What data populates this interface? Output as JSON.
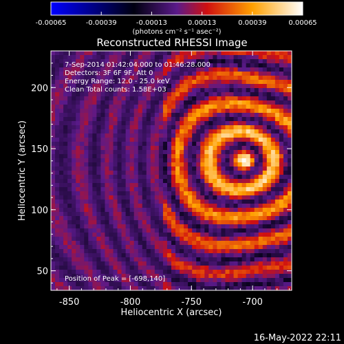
{
  "chart_data": {
    "type": "heatmap",
    "title": "Reconstructed RHESSI Image",
    "xlabel": "Heliocentric X (arcsec)",
    "ylabel": "Heliocentric Y (arcsec)",
    "xlim": [
      -865,
      -668
    ],
    "ylim": [
      34,
      230
    ],
    "x_ticks": [
      -850,
      -800,
      -750,
      -700
    ],
    "x_tick_labels": [
      "-850",
      "-800",
      "-750",
      "-700"
    ],
    "y_ticks": [
      50,
      100,
      150,
      200
    ],
    "y_tick_labels": [
      "50",
      "100",
      "150",
      "200"
    ],
    "colorbar": {
      "range": [
        -0.00065,
        0.00065
      ],
      "ticks": [
        -0.00065,
        -0.00039,
        -0.00013,
        0.00013,
        0.00039,
        0.00065
      ],
      "tick_labels": [
        "-0.00065",
        "-0.00039",
        "-0.00013",
        "0.00013",
        "0.00039",
        "0.00065"
      ],
      "unit_label": "(photons cm⁻² s⁻¹ asec⁻²)",
      "colormap": [
        "#0000ff",
        "#000000",
        "#7a1fa0",
        "#ff2000",
        "#ffb000",
        "#ffffff"
      ]
    },
    "annotations": [
      "7-Sep-2014 01:42:04.000 to 01:46:28.000",
      "Detectors: 3F 6F 9F, Att 0",
      "Energy Range: 12.0 - 25.0 keV",
      "Clean    Total counts: 1.58E+03",
      "Position of Peak = [-698,140]"
    ],
    "peak": [
      -698,
      140
    ],
    "grid": false
  },
  "footer": {
    "date": "16-May-2022 22:11"
  }
}
